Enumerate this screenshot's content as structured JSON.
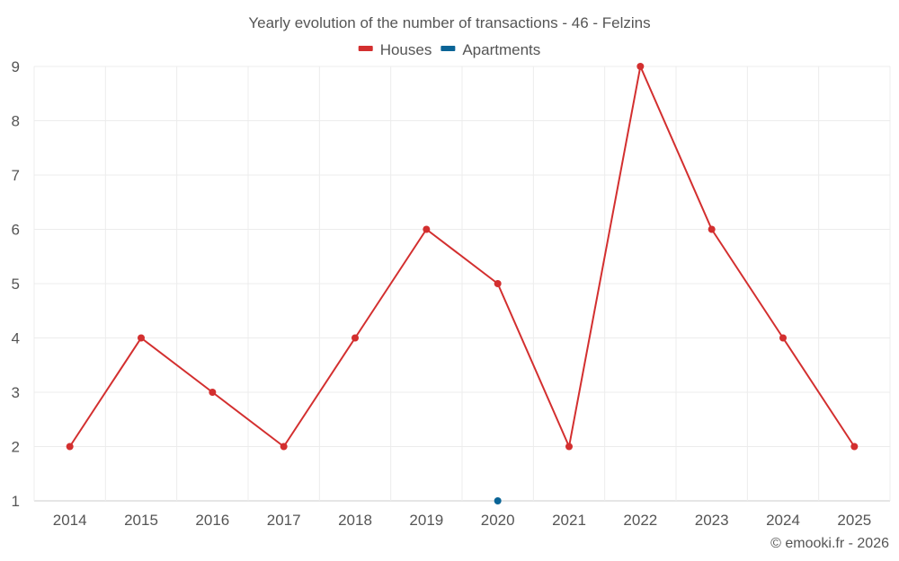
{
  "chart_data": {
    "type": "line",
    "title": "Yearly evolution of the number of transactions - 46 - Felzins",
    "categories": [
      "2014",
      "2015",
      "2016",
      "2017",
      "2018",
      "2019",
      "2020",
      "2021",
      "2022",
      "2023",
      "2024",
      "2025"
    ],
    "series": [
      {
        "name": "Houses",
        "color": "#d32f2f",
        "values": [
          2,
          4,
          3,
          2,
          4,
          6,
          5,
          2,
          9,
          6,
          4,
          2
        ]
      },
      {
        "name": "Apartments",
        "color": "#0a6496",
        "values": [
          null,
          null,
          null,
          null,
          null,
          null,
          1,
          null,
          null,
          null,
          null,
          null
        ]
      }
    ],
    "ylim": [
      1,
      9
    ],
    "yticks": [
      1,
      2,
      3,
      4,
      5,
      6,
      7,
      8,
      9
    ],
    "grid": true,
    "legend_position": "top-center",
    "xlabel": "",
    "ylabel": ""
  },
  "credit": "© emooki.fr - 2026"
}
